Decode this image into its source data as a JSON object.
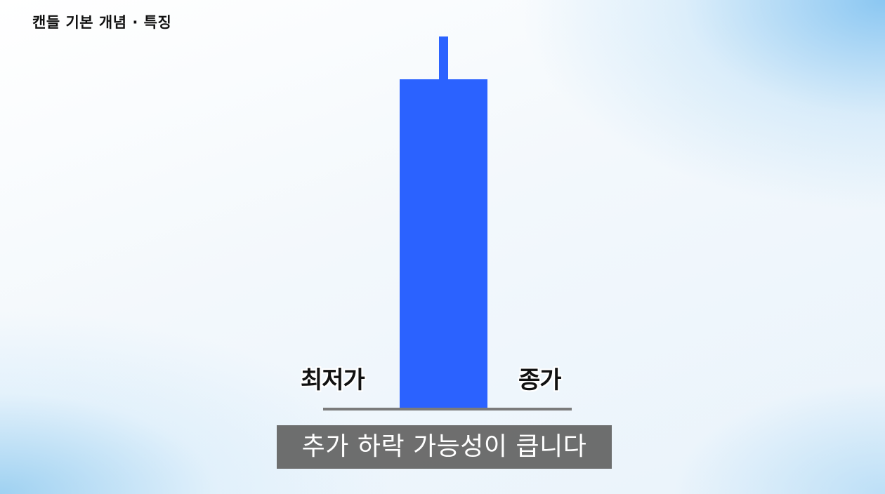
{
  "header": {
    "title": "캔들 기본 개념 · 특징"
  },
  "diagram": {
    "candle_color": "#2b62ff",
    "baseline_color": "#7b7b7b",
    "labels": {
      "low": "최저가",
      "close": "종가"
    }
  },
  "caption": {
    "text": "추가 하락 가능성이 큽니다"
  }
}
